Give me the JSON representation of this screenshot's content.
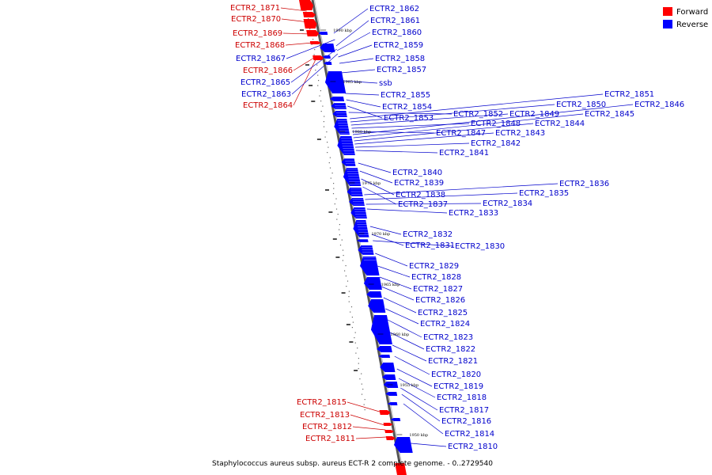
{
  "caption": "Staphylococcus aureus subsp. aureus ECT-R 2 complete genome. - 0..2729540",
  "colors": {
    "forward": "#ff0000",
    "reverse": "#0000ff",
    "forward_label": "#cc0000",
    "reverse_label": "#0000cc",
    "backbone": "#555555"
  },
  "legend": [
    {
      "label": "Forward",
      "color": "#ff0000"
    },
    {
      "label": "Reverse",
      "color": "#0000ff"
    }
  ],
  "ticks": [
    "1990 kbp",
    "1985 kbp",
    "1980 kbp",
    "1975 kbp",
    "1970 kbp",
    "1965 kbp",
    "1960 kbp",
    "1955 kbp",
    "1950 kbp"
  ],
  "forward_labels": [
    "ECTR2_1871",
    "ECTR2_1870",
    "ECTR2_1869",
    "ECTR2_1868",
    "ECTR2_1866",
    "ECTR2_1864",
    "ECTR2_1815",
    "ECTR2_1813",
    "ECTR2_1812",
    "ECTR2_1811"
  ],
  "reverse_labels": [
    "ECTR2_1867",
    "ECTR2_1865",
    "ECTR2_1863",
    "ECTR2_1862",
    "ECTR2_1861",
    "ECTR2_1860",
    "ECTR2_1859",
    "ECTR2_1858",
    "ECTR2_1857",
    "ssb",
    "ECTR2_1855",
    "ECTR2_1854",
    "ECTR2_1853",
    "ECTR2_1852",
    "ECTR2_1851",
    "ECTR2_1850",
    "ECTR2_1849",
    "ECTR2_1848",
    "ECTR2_1847",
    "ECTR2_1846",
    "ECTR2_1845",
    "ECTR2_1844",
    "ECTR2_1843",
    "ECTR2_1842",
    "ECTR2_1841",
    "ECTR2_1840",
    "ECTR2_1839",
    "ECTR2_1838",
    "ECTR2_1837",
    "ECTR2_1836",
    "ECTR2_1835",
    "ECTR2_1834",
    "ECTR2_1833",
    "ECTR2_1832",
    "ECTR2_1831",
    "ECTR2_1830",
    "ECTR2_1829",
    "ECTR2_1828",
    "ECTR2_1827",
    "ECTR2_1826",
    "ECTR2_1825",
    "ECTR2_1824",
    "ECTR2_1823",
    "ECTR2_1822",
    "ECTR2_1821",
    "ECTR2_1820",
    "ECTR2_1819",
    "ECTR2_1818",
    "ECTR2_1817",
    "ECTR2_1816",
    "ECTR2_1814",
    "ECTR2_1810"
  ]
}
